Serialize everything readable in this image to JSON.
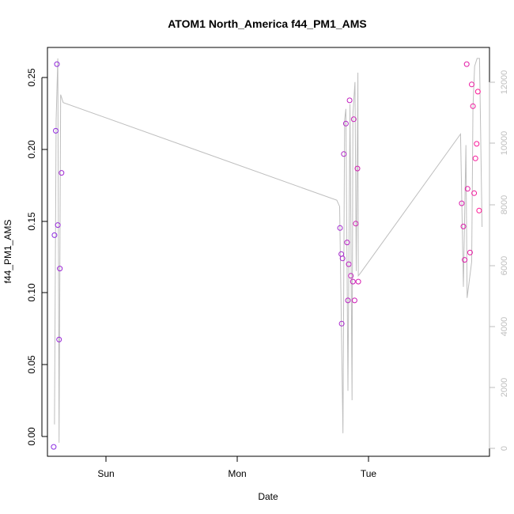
{
  "chart_data": {
    "type": "scatter",
    "title": "ATOM1 North_America f44_PM1_AMS",
    "xlabel": "Date",
    "ylabel": "f44_PM1_AMS",
    "x_ticks": [
      "Sun",
      "Mon",
      "Tue"
    ],
    "y_ticks": [
      "0.00",
      "0.05",
      "0.10",
      "0.15",
      "0.20",
      "0.25"
    ],
    "y2_ticks": [
      "0",
      "2000",
      "4000",
      "6000",
      "8000",
      "10000",
      "12000"
    ],
    "xlim_hours": [
      -14.5,
      92.3
    ],
    "ylim": [
      -0.0095,
      0.2725
    ],
    "y2lim": [
      -180,
      12800
    ],
    "grid": false,
    "colors": {
      "points_start": "#8a2be2",
      "points_end": "#ff1493",
      "line": "#bebebe",
      "axis": "#000000",
      "right_axis": "#bebebe"
    },
    "points": [
      {
        "x": -13.0,
        "y": -0.003
      },
      {
        "x": -12.8,
        "y": 0.143
      },
      {
        "x": -12.5,
        "y": 0.215
      },
      {
        "x": -12.2,
        "y": 0.261
      },
      {
        "x": -12.0,
        "y": 0.15
      },
      {
        "x": -11.7,
        "y": 0.071
      },
      {
        "x": -11.5,
        "y": 0.12
      },
      {
        "x": -11.1,
        "y": 0.186
      },
      {
        "x": 56.2,
        "y": 0.148
      },
      {
        "x": 56.5,
        "y": 0.13
      },
      {
        "x": 56.6,
        "y": 0.082
      },
      {
        "x": 56.8,
        "y": 0.127
      },
      {
        "x": 57.1,
        "y": 0.199
      },
      {
        "x": 57.6,
        "y": 0.22
      },
      {
        "x": 57.9,
        "y": 0.138
      },
      {
        "x": 58.1,
        "y": 0.098
      },
      {
        "x": 58.3,
        "y": 0.123
      },
      {
        "x": 58.5,
        "y": 0.236
      },
      {
        "x": 58.8,
        "y": 0.115
      },
      {
        "x": 59.3,
        "y": 0.111
      },
      {
        "x": 59.5,
        "y": 0.223
      },
      {
        "x": 59.7,
        "y": 0.098
      },
      {
        "x": 60.0,
        "y": 0.151
      },
      {
        "x": 60.4,
        "y": 0.189
      },
      {
        "x": 60.6,
        "y": 0.111
      },
      {
        "x": 85.6,
        "y": 0.165
      },
      {
        "x": 86.0,
        "y": 0.149
      },
      {
        "x": 86.3,
        "y": 0.126
      },
      {
        "x": 86.8,
        "y": 0.261
      },
      {
        "x": 87.0,
        "y": 0.175
      },
      {
        "x": 87.6,
        "y": 0.131
      },
      {
        "x": 88.0,
        "y": 0.247
      },
      {
        "x": 88.3,
        "y": 0.232
      },
      {
        "x": 88.6,
        "y": 0.172
      },
      {
        "x": 88.9,
        "y": 0.196
      },
      {
        "x": 89.2,
        "y": 0.206
      },
      {
        "x": 89.5,
        "y": 0.242
      },
      {
        "x": 89.8,
        "y": 0.16
      }
    ],
    "line": [
      {
        "x": -12.8,
        "y2": 830
      },
      {
        "x": -12.4,
        "y2": 10500
      },
      {
        "x": -12.0,
        "y2": 12450
      },
      {
        "x": -11.7,
        "y2": 250
      },
      {
        "x": -11.3,
        "y2": 11300
      },
      {
        "x": -10.7,
        "y2": 11050
      },
      {
        "x": 55.4,
        "y2": 7950
      },
      {
        "x": 56.1,
        "y2": 7750
      },
      {
        "x": 56.9,
        "y2": 550
      },
      {
        "x": 57.3,
        "y2": 10500
      },
      {
        "x": 57.6,
        "y2": 10850
      },
      {
        "x": 58.1,
        "y2": 1900
      },
      {
        "x": 58.6,
        "y2": 11000
      },
      {
        "x": 59.1,
        "y2": 1600
      },
      {
        "x": 59.3,
        "y2": 10700
      },
      {
        "x": 59.8,
        "y2": 11700
      },
      {
        "x": 60.1,
        "y2": 5700
      },
      {
        "x": 60.5,
        "y2": 12000
      },
      {
        "x": 60.6,
        "y2": 5550
      },
      {
        "x": 61.2,
        "y2": 5650
      },
      {
        "x": 85.3,
        "y2": 10050
      },
      {
        "x": 86.0,
        "y2": 5200
      },
      {
        "x": 86.6,
        "y2": 9700
      },
      {
        "x": 86.9,
        "y2": 4850
      },
      {
        "x": 88.0,
        "y2": 6000
      },
      {
        "x": 88.3,
        "y2": 10900
      },
      {
        "x": 88.7,
        "y2": 12200
      },
      {
        "x": 89.3,
        "y2": 12450
      },
      {
        "x": 89.9,
        "y2": 12450
      },
      {
        "x": 90.5,
        "y2": 7100
      }
    ]
  }
}
